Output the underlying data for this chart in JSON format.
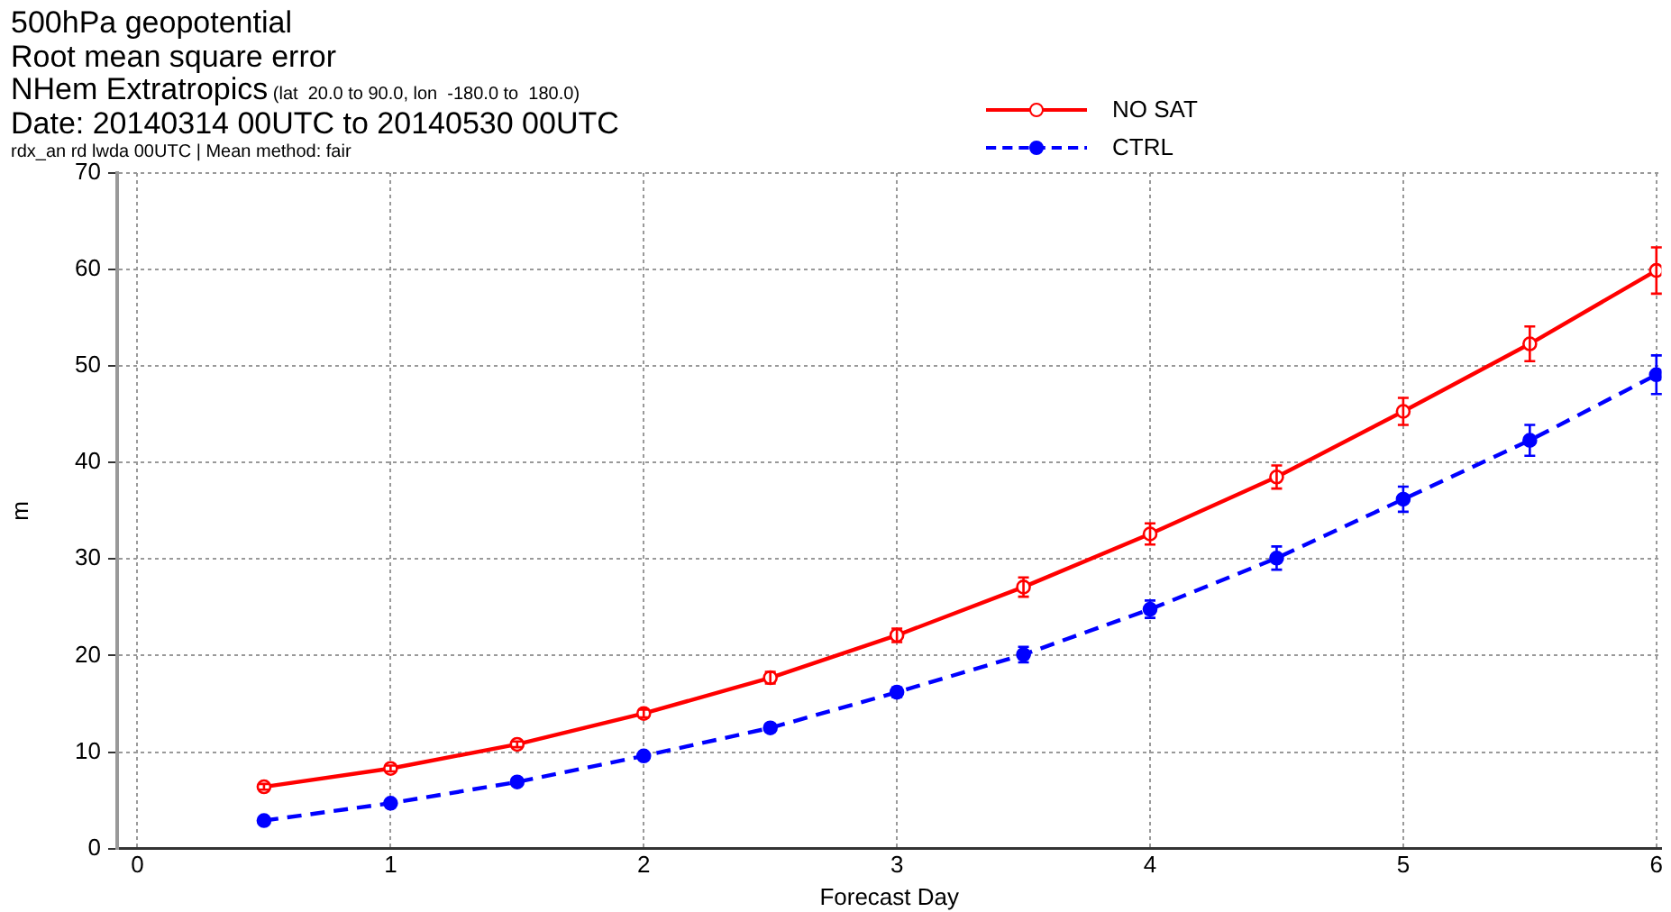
{
  "chart_data": {
    "type": "line",
    "title": "500hPa geopotential",
    "subtitle": "Root mean square error",
    "annotations": [
      "NHem Extratropics",
      "(lat  20.0 to 90.0, lon  -180.0 to  180.0)",
      "Date: 20140314 00UTC to 20140530 00UTC",
      "rdx_an rd lwda 00UTC | Mean method: fair"
    ],
    "xlabel": "Forecast Day",
    "ylabel": "m",
    "x": [
      0.5,
      1,
      1.5,
      2,
      2.5,
      3,
      3.5,
      4,
      4.5,
      5,
      5.5,
      6
    ],
    "series": [
      {
        "name": "NO SAT",
        "color": "#ff0000",
        "line_style": "solid",
        "marker": "circle",
        "values": [
          6.4,
          8.3,
          10.8,
          14.0,
          17.7,
          22.1,
          27.1,
          32.6,
          38.5,
          45.3,
          52.3,
          59.9
        ],
        "errors": [
          0.3,
          0.3,
          0.3,
          0.4,
          0.6,
          0.7,
          1.0,
          1.1,
          1.2,
          1.4,
          1.8,
          2.4
        ]
      },
      {
        "name": "CTRL",
        "color": "#0000ff",
        "line_style": "dashed",
        "marker": "circle",
        "values": [
          2.9,
          4.7,
          6.9,
          9.6,
          12.5,
          16.2,
          20.1,
          24.8,
          30.1,
          36.2,
          42.3,
          49.1
        ],
        "errors": [
          0.3,
          0.3,
          0.3,
          0.3,
          0.4,
          0.5,
          0.8,
          0.9,
          1.2,
          1.3,
          1.6,
          2.0
        ]
      }
    ],
    "xlim": [
      -0.08,
      6.02
    ],
    "xticks": [
      0,
      1,
      2,
      3,
      4,
      5,
      6
    ],
    "ylim": [
      0,
      70
    ],
    "yticks": [
      0,
      10,
      20,
      30,
      40,
      50,
      60,
      70
    ],
    "grid": true,
    "legend": "top"
  }
}
